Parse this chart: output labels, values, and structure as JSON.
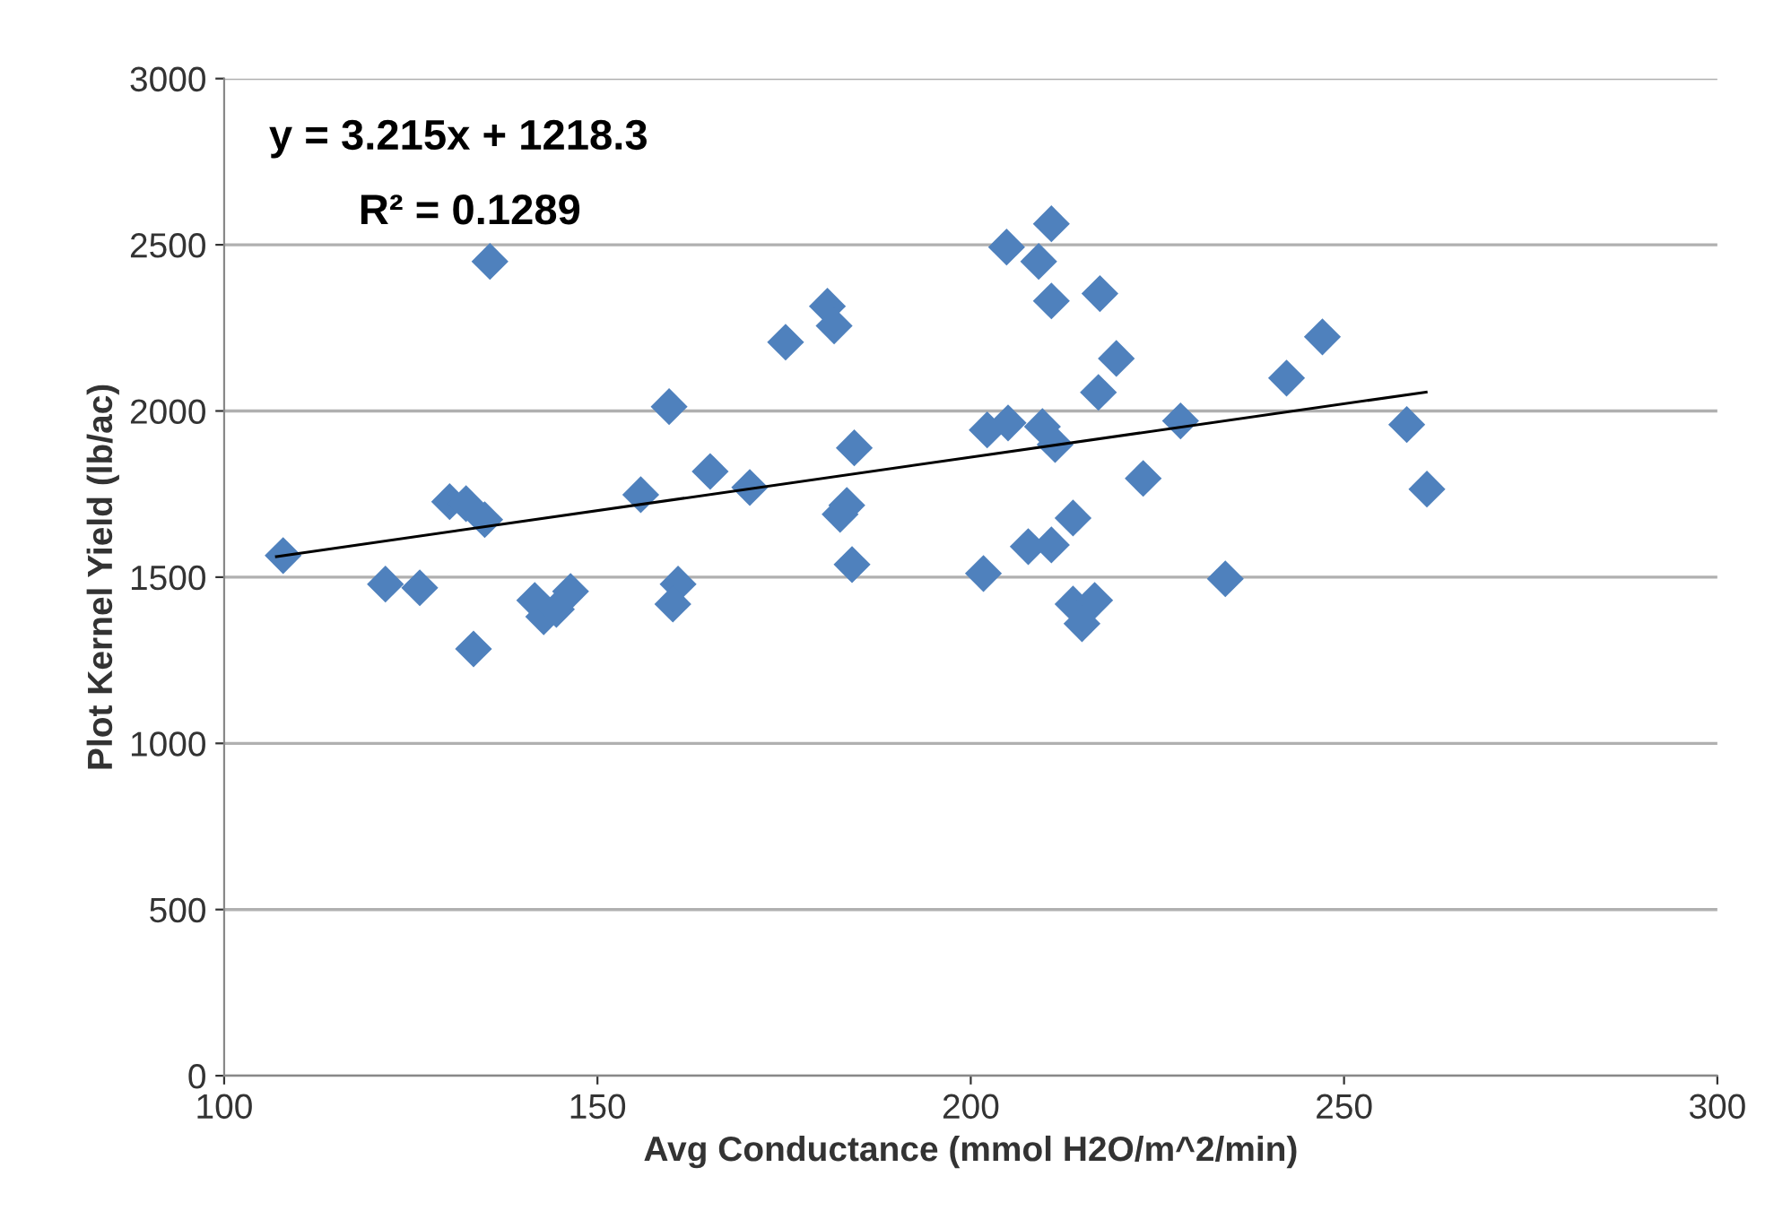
{
  "chart_data": {
    "type": "scatter",
    "xlabel": "Avg Conductance (mmol H2O/m^2/min)",
    "ylabel": "Plot Kernel Yield (lb/ac)",
    "annotations": [
      "y = 3.215x + 1218.3",
      "R² = 0.1289"
    ],
    "series": [
      {
        "color": "#4f81bd",
        "marker": "diamond",
        "x": [
          107.9,
          121.6,
          126.2,
          130.2,
          132.4,
          134.9,
          133.4,
          135.6,
          141.6,
          142.8,
          144.5,
          146.4,
          159.6,
          155.8,
          165.1,
          170.4,
          160.8,
          160.1,
          175.2,
          180.8,
          181.7,
          184.4,
          183.4,
          182.5,
          184.1,
          201.7,
          202.2,
          205.0,
          204.8,
          210.8,
          209.1,
          210.8,
          217.3,
          219.5,
          217.1,
          209.6,
          211.3,
          223.1,
          228.1,
          213.7,
          207.7,
          210.8,
          213.7,
          216.6,
          214.9,
          234.1,
          242.3,
          247.1,
          258.4,
          261.1
        ],
        "values": [
          1565,
          1479,
          1468,
          1727,
          1721,
          1673,
          1284,
          2450,
          1430,
          1381,
          1403,
          1457,
          2013,
          1748,
          1818,
          1770,
          1479,
          1419,
          2207,
          2315,
          2256,
          1889,
          1716,
          1689,
          1538,
          1511,
          1943,
          1964,
          2493,
          2563,
          2450,
          2331,
          2353,
          2158,
          2056,
          1953,
          1899,
          1797,
          1970,
          1678,
          1592,
          1597,
          1419,
          1430,
          1360,
          1495,
          2099,
          2223,
          1959,
          1765
        ]
      },
      {
        "type": "line",
        "color": "#000000",
        "marker": "none",
        "x": [
          107,
          261
        ],
        "values": [
          1562,
          2057
        ]
      }
    ],
    "xlim": [
      100,
      300
    ],
    "xticks": [
      100,
      150,
      200,
      250,
      300
    ],
    "ylim": [
      0,
      3000
    ],
    "yticks": [
      0,
      500,
      1000,
      1500,
      2000,
      2500,
      3000
    ],
    "grid": "y",
    "legend": false
  }
}
